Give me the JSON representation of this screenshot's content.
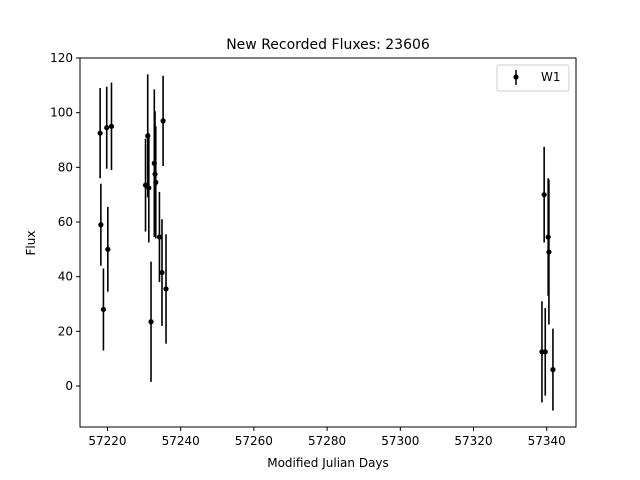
{
  "chart_data": {
    "type": "scatter",
    "title": "New Recorded Fluxes: 23606",
    "xlabel": "Modified Julian Days",
    "ylabel": "Flux",
    "xlim": [
      57212.5,
      57348
    ],
    "ylim": [
      -15,
      120
    ],
    "xticks": [
      57220,
      57240,
      57260,
      57280,
      57300,
      57320,
      57340
    ],
    "yticks": [
      0,
      20,
      40,
      60,
      80,
      100,
      120
    ],
    "grid": false,
    "legend": "top-right",
    "series": [
      {
        "name": "W1",
        "color": "#000000",
        "points": [
          {
            "x": 57218.0,
            "y": 92.5,
            "err": 16.5
          },
          {
            "x": 57218.2,
            "y": 59.0,
            "err": 15.0
          },
          {
            "x": 57218.9,
            "y": 28.0,
            "err": 15.0
          },
          {
            "x": 57219.8,
            "y": 94.5,
            "err": 15.0
          },
          {
            "x": 57220.1,
            "y": 50.0,
            "err": 15.5
          },
          {
            "x": 57221.1,
            "y": 95.0,
            "err": 16.0
          },
          {
            "x": 57230.4,
            "y": 73.5,
            "err": 17.0
          },
          {
            "x": 57231.0,
            "y": 91.5,
            "err": 22.5
          },
          {
            "x": 57231.3,
            "y": 72.5,
            "err": 20.0
          },
          {
            "x": 57231.9,
            "y": 23.5,
            "err": 22.0
          },
          {
            "x": 57232.8,
            "y": 81.5,
            "err": 27.0
          },
          {
            "x": 57233.0,
            "y": 77.5,
            "err": 23.0
          },
          {
            "x": 57233.2,
            "y": 74.5,
            "err": 20.5
          },
          {
            "x": 57234.2,
            "y": 54.5,
            "err": 16.5
          },
          {
            "x": 57234.9,
            "y": 41.5,
            "err": 19.5
          },
          {
            "x": 57235.2,
            "y": 97.0,
            "err": 16.5
          },
          {
            "x": 57236.0,
            "y": 35.5,
            "err": 20.0
          },
          {
            "x": 57338.7,
            "y": 12.5,
            "err": 18.5
          },
          {
            "x": 57339.3,
            "y": 70.0,
            "err": 17.5
          },
          {
            "x": 57339.6,
            "y": 12.5,
            "err": 16.0
          },
          {
            "x": 57340.4,
            "y": 54.5,
            "err": 21.5
          },
          {
            "x": 57340.6,
            "y": 49.0,
            "err": 26.5
          },
          {
            "x": 57341.7,
            "y": 6.0,
            "err": 15.0
          }
        ]
      }
    ]
  }
}
